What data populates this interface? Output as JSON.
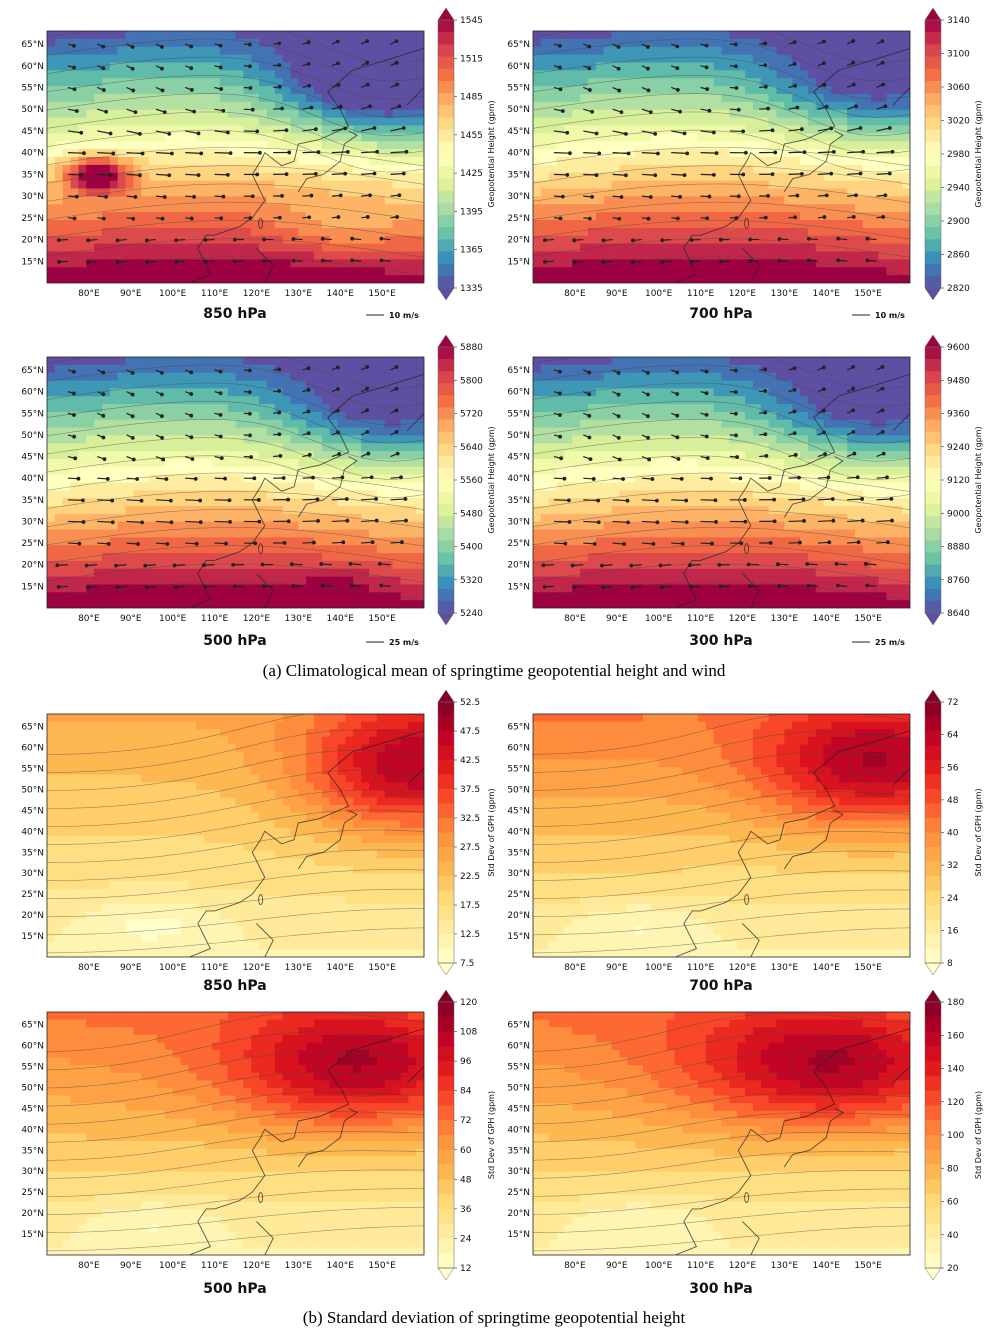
{
  "captions": {
    "a": "(a)  Climatological  mean  of  springtime  geopotential  height  and  wind",
    "b": "(b)  Standard  deviation  of  springtime  geopotential  height"
  },
  "map_axes": {
    "lon_ticks": [
      "80°E",
      "90°E",
      "100°E",
      "110°E",
      "120°E",
      "130°E",
      "140°E",
      "150°E"
    ],
    "lon_values": [
      80,
      90,
      100,
      110,
      120,
      130,
      140,
      150
    ],
    "lat_ticks": [
      "15°N",
      "20°N",
      "25°N",
      "30°N",
      "35°N",
      "40°N",
      "45°N",
      "50°N",
      "55°N",
      "60°N",
      "65°N"
    ],
    "lat_values": [
      15,
      20,
      25,
      30,
      35,
      40,
      45,
      50,
      55,
      60,
      65
    ],
    "lon_range": [
      70,
      160
    ],
    "lat_range": [
      10,
      68
    ]
  },
  "colors": {
    "spectral": [
      "#5e4fa2",
      "#3288bd",
      "#66c2a5",
      "#abdda4",
      "#e6f598",
      "#ffffbf",
      "#fee08b",
      "#fdae61",
      "#f46d43",
      "#d53e4f",
      "#9e0142"
    ],
    "ylorrd": [
      "#ffffcc",
      "#ffeda0",
      "#fed976",
      "#feb24c",
      "#fd8d3c",
      "#fc4e2a",
      "#e31a1c",
      "#bd0026",
      "#800026"
    ]
  },
  "chart_data": [
    {
      "type": "heatmap",
      "title": "850 hPa",
      "group": "a",
      "field": "Climatological mean geopotential height and wind",
      "colorbar_label": "Geopotential Height (gpm)",
      "colorbar_ticks": [
        "1335",
        "1365",
        "1395",
        "1425",
        "1455",
        "1485",
        "1515",
        "1545"
      ],
      "vmin": 1335,
      "vmax": 1545,
      "colormap": "spectral",
      "wind_reference": "10 m/s",
      "features": {
        "low_center": [
          150,
          52
        ],
        "high_band_lat": 20,
        "plateau": true
      }
    },
    {
      "type": "heatmap",
      "title": "700 hPa",
      "group": "a",
      "field": "Climatological mean geopotential height and wind",
      "colorbar_label": "Geopotential Height (gpm)",
      "colorbar_ticks": [
        "2820",
        "2860",
        "2900",
        "2940",
        "2980",
        "3020",
        "3060",
        "3100",
        "3140"
      ],
      "vmin": 2820,
      "vmax": 3140,
      "colormap": "spectral",
      "wind_reference": "10 m/s"
    },
    {
      "type": "heatmap",
      "title": "500 hPa",
      "group": "a",
      "field": "Climatological mean geopotential height and wind",
      "colorbar_label": "Geopotential Height (gpm)",
      "colorbar_ticks": [
        "5240",
        "5320",
        "5400",
        "5480",
        "5560",
        "5640",
        "5720",
        "5800",
        "5880"
      ],
      "vmin": 5240,
      "vmax": 5880,
      "colormap": "spectral",
      "wind_reference": "25 m/s"
    },
    {
      "type": "heatmap",
      "title": "300 hPa",
      "group": "a",
      "field": "Climatological mean geopotential height and wind",
      "colorbar_label": "Geopotential Height (gpm)",
      "colorbar_ticks": [
        "8640",
        "8760",
        "8880",
        "9000",
        "9120",
        "9240",
        "9360",
        "9480",
        "9600"
      ],
      "vmin": 8640,
      "vmax": 9600,
      "colormap": "spectral",
      "wind_reference": "25 m/s"
    },
    {
      "type": "heatmap",
      "title": "850 hPa",
      "group": "b",
      "field": "Standard deviation of geopotential height",
      "colorbar_label": "Std Dev of GPH (gpm)",
      "colorbar_ticks": [
        "7.5",
        "12.5",
        "17.5",
        "22.5",
        "27.5",
        "32.5",
        "37.5",
        "42.5",
        "47.5",
        "52.5"
      ],
      "vmin": 7.5,
      "vmax": 52.5,
      "colormap": "ylorrd",
      "features": {
        "max_center": [
          158,
          55
        ]
      }
    },
    {
      "type": "heatmap",
      "title": "700 hPa",
      "group": "b",
      "field": "Standard deviation of geopotential height",
      "colorbar_label": "Std Dev of GPH (gpm)",
      "colorbar_ticks": [
        "8",
        "16",
        "24",
        "32",
        "40",
        "48",
        "56",
        "64",
        "72"
      ],
      "vmin": 8,
      "vmax": 72,
      "colormap": "ylorrd",
      "features": {
        "max_center": [
          152,
          56
        ]
      }
    },
    {
      "type": "heatmap",
      "title": "500 hPa",
      "group": "b",
      "field": "Standard deviation of geopotential height",
      "colorbar_label": "Std Dev of GPH (gpm)",
      "colorbar_ticks": [
        "12",
        "24",
        "36",
        "48",
        "60",
        "72",
        "84",
        "96",
        "108",
        "120"
      ],
      "vmin": 12,
      "vmax": 120,
      "colormap": "ylorrd",
      "features": {
        "max_center": [
          145,
          55
        ]
      }
    },
    {
      "type": "heatmap",
      "title": "300 hPa",
      "group": "b",
      "field": "Standard deviation of geopotential height",
      "colorbar_label": "Std Dev of GPH (gpm)",
      "colorbar_ticks": [
        "20",
        "40",
        "60",
        "80",
        "100",
        "120",
        "140",
        "160",
        "180"
      ],
      "vmin": 20,
      "vmax": 180,
      "colormap": "ylorrd",
      "features": {
        "max_center": [
          142,
          55
        ]
      }
    }
  ]
}
